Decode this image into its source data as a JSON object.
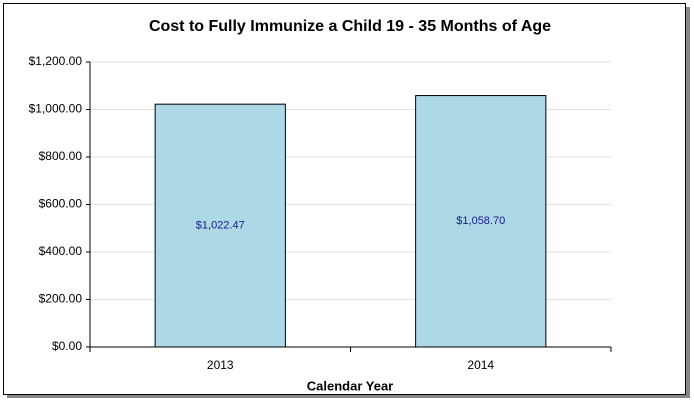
{
  "chart_data": {
    "type": "bar",
    "title": "Cost to Fully Immunize a Child 19 - 35 Months of Age",
    "xlabel": "Calendar Year",
    "categories": [
      "2013",
      "2014"
    ],
    "values": [
      1022.47,
      1058.7
    ],
    "value_labels": [
      "$1,022.47",
      "$1,058.70"
    ],
    "color": "#add8e6",
    "ylim": [
      0,
      1200
    ],
    "yticks": [
      {
        "value": 0,
        "label": "$0.00"
      },
      {
        "value": 200,
        "label": "$200.00"
      },
      {
        "value": 400,
        "label": "$400.00"
      },
      {
        "value": 600,
        "label": "$600.00"
      },
      {
        "value": 800,
        "label": "$800.00"
      },
      {
        "value": 1000,
        "label": "$1,000.00"
      },
      {
        "value": 1200,
        "label": "$1,200.00"
      }
    ],
    "grid": true
  }
}
